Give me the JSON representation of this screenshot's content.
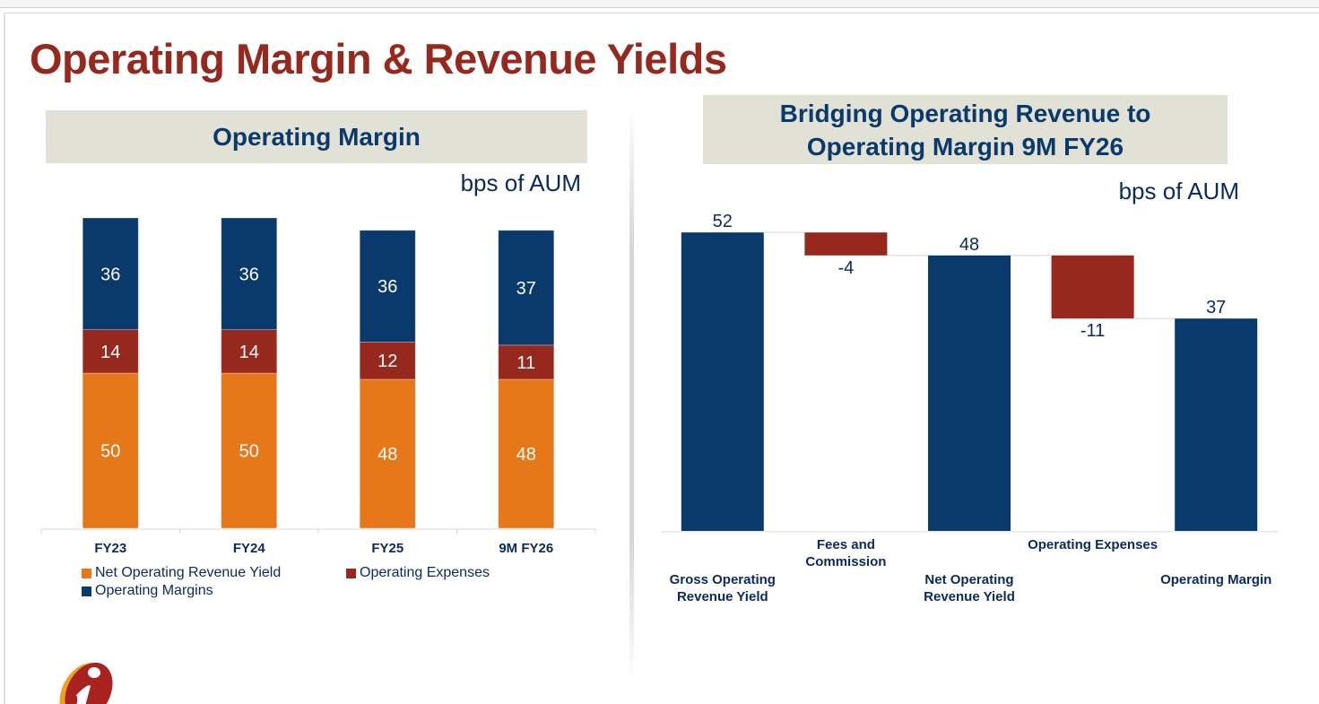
{
  "page": {
    "title": "Operating Margin & Revenue Yields"
  },
  "colors": {
    "title": "#97281e",
    "header_bg": "#e2e1d6",
    "header_text": "#0a3a6b",
    "navy": "#0a3a6b",
    "red": "#97281e",
    "orange": "#e6781a",
    "text": "#0a2a5e"
  },
  "left_panel": {
    "header": "Operating Margin",
    "unit": "bps of AUM"
  },
  "right_panel": {
    "header_line1": "Bridging Operating Revenue to",
    "header_line2": "Operating Margin 9M FY26",
    "unit": "bps of AUM"
  },
  "logo": {
    "icon": "icici-i-logo-icon"
  },
  "chart_data": [
    {
      "type": "bar",
      "stacked": true,
      "title": "Operating Margin",
      "ylabel": "bps of AUM",
      "xlabel": "",
      "categories": [
        "FY23",
        "FY24",
        "FY25",
        "9M FY26"
      ],
      "series": [
        {
          "name": "Net Operating Revenue Yield",
          "color": "#e6781a",
          "values": [
            50,
            50,
            48,
            48
          ]
        },
        {
          "name": "Operating Expenses",
          "color": "#97281e",
          "values": [
            14,
            14,
            12,
            11
          ]
        },
        {
          "name": "Operating Margins",
          "color": "#0a3a6b",
          "values": [
            36,
            36,
            36,
            37
          ]
        }
      ],
      "ylim": [
        0,
        100
      ],
      "grid": false,
      "legend": "bottom-left",
      "legend_order": [
        "Net Operating Revenue Yield",
        "Operating Expenses",
        "Operating Margins"
      ]
    },
    {
      "type": "bar",
      "subtype": "waterfall",
      "title": "Bridging Operating Revenue to Operating Margin 9M FY26",
      "ylabel": "bps of AUM",
      "xlabel": "",
      "categories": [
        [
          "Gross Operating",
          "Revenue Yield"
        ],
        [
          "Fees and",
          "Commission"
        ],
        [
          "Net Operating",
          "Revenue Yield"
        ],
        [
          "Operating Expenses"
        ],
        [
          "Operating Margin"
        ]
      ],
      "steps": [
        {
          "kind": "total",
          "value": 52,
          "label": "52",
          "color": "#0a3a6b"
        },
        {
          "kind": "delta",
          "value": -4,
          "label": "-4",
          "color": "#97281e"
        },
        {
          "kind": "total",
          "value": 48,
          "label": "48",
          "color": "#0a3a6b"
        },
        {
          "kind": "delta",
          "value": -11,
          "label": "-11",
          "color": "#97281e"
        },
        {
          "kind": "total",
          "value": 37,
          "label": "37",
          "color": "#0a3a6b"
        }
      ],
      "ylim": [
        0,
        52
      ],
      "grid": false,
      "legend": "none"
    }
  ]
}
